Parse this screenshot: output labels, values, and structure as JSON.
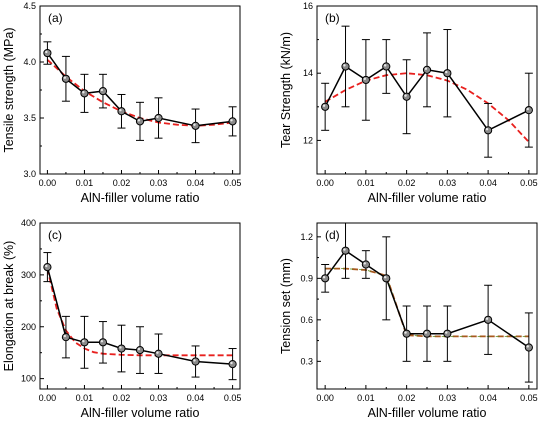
{
  "chart_data": [
    {
      "type": "line",
      "panel_label": "(a)",
      "xlabel": "AlN-filler volume ratio",
      "ylabel": "Tensile strength (MPa)",
      "xlim": [
        -0.002,
        0.052
      ],
      "ylim": [
        3.0,
        4.5
      ],
      "xticks": [
        0.0,
        0.01,
        0.02,
        0.03,
        0.04,
        0.05
      ],
      "xtick_labels": [
        "0.00",
        "0.01",
        "0.02",
        "0.03",
        "0.04",
        "0.05"
      ],
      "yticks": [
        3.0,
        3.5,
        4.0,
        4.5
      ],
      "ytick_labels": [
        "3.0",
        "3.5",
        "4.0",
        "4.5"
      ],
      "x": [
        0.0,
        0.005,
        0.01,
        0.015,
        0.02,
        0.025,
        0.03,
        0.04,
        0.05
      ],
      "y": [
        4.08,
        3.85,
        3.72,
        3.74,
        3.56,
        3.47,
        3.5,
        3.43,
        3.47
      ],
      "err": [
        0.1,
        0.2,
        0.17,
        0.15,
        0.15,
        0.17,
        0.18,
        0.15,
        0.13
      ],
      "fit": {
        "x": [
          0.0,
          0.005,
          0.01,
          0.015,
          0.02,
          0.025,
          0.03,
          0.035,
          0.04,
          0.045,
          0.05
        ],
        "y": [
          4.02,
          3.87,
          3.74,
          3.64,
          3.56,
          3.5,
          3.46,
          3.44,
          3.43,
          3.44,
          3.46
        ]
      }
    },
    {
      "type": "line",
      "panel_label": "(b)",
      "xlabel": "AlN-filler volume ratio",
      "ylabel": "Tear Strength (kN/m)",
      "xlim": [
        -0.002,
        0.052
      ],
      "ylim": [
        11.0,
        16.0
      ],
      "xticks": [
        0.0,
        0.01,
        0.02,
        0.03,
        0.04,
        0.05
      ],
      "xtick_labels": [
        "0.00",
        "0.01",
        "0.02",
        "0.03",
        "0.04",
        "0.05"
      ],
      "yticks": [
        12,
        14,
        16
      ],
      "ytick_labels": [
        "12",
        "14",
        "16"
      ],
      "x": [
        0.0,
        0.005,
        0.01,
        0.015,
        0.02,
        0.025,
        0.03,
        0.04,
        0.05
      ],
      "y": [
        13.0,
        14.2,
        13.8,
        14.2,
        13.3,
        14.1,
        14.0,
        12.3,
        12.9
      ],
      "err": [
        0.7,
        1.2,
        1.2,
        0.8,
        1.1,
        1.1,
        1.3,
        0.8,
        1.1
      ],
      "fit": {
        "x": [
          0.0,
          0.005,
          0.01,
          0.015,
          0.02,
          0.025,
          0.03,
          0.035,
          0.04,
          0.045,
          0.05
        ],
        "y": [
          13.15,
          13.5,
          13.78,
          13.94,
          14.0,
          13.94,
          13.78,
          13.5,
          13.1,
          12.6,
          11.95
        ]
      }
    },
    {
      "type": "line",
      "panel_label": "(c)",
      "xlabel": "AlN-filler volume ratio",
      "ylabel": "Elongation at break (%)",
      "xlim": [
        -0.002,
        0.052
      ],
      "ylim": [
        80,
        400
      ],
      "xticks": [
        0.0,
        0.01,
        0.02,
        0.03,
        0.04,
        0.05
      ],
      "xtick_labels": [
        "0.00",
        "0.01",
        "0.02",
        "0.03",
        "0.04",
        "0.05"
      ],
      "yticks": [
        100,
        200,
        300,
        400
      ],
      "ytick_labels": [
        "100",
        "200",
        "300",
        "400"
      ],
      "x": [
        0.0,
        0.005,
        0.01,
        0.015,
        0.02,
        0.025,
        0.03,
        0.04,
        0.05
      ],
      "y": [
        315,
        180,
        170,
        170,
        158,
        155,
        148,
        133,
        128
      ],
      "err": [
        28,
        40,
        50,
        40,
        45,
        45,
        38,
        30,
        30
      ],
      "fit": {
        "x": [
          0.0,
          0.0025,
          0.005,
          0.0075,
          0.01,
          0.0125,
          0.015,
          0.02,
          0.025,
          0.03,
          0.035,
          0.04,
          0.045,
          0.05
        ],
        "y": [
          312,
          235,
          193,
          170,
          158,
          151,
          148,
          146,
          145,
          145,
          145,
          145,
          145,
          145
        ]
      }
    },
    {
      "type": "line",
      "panel_label": "(d)",
      "xlabel": "AlN-filler volume ratio",
      "ylabel": "Tension set (mm)",
      "xlim": [
        -0.002,
        0.052
      ],
      "ylim": [
        0.1,
        1.3
      ],
      "xticks": [
        0.0,
        0.01,
        0.02,
        0.03,
        0.04,
        0.05
      ],
      "xtick_labels": [
        "0.00",
        "0.01",
        "0.02",
        "0.03",
        "0.04",
        "0.05"
      ],
      "yticks": [
        0.3,
        0.6,
        0.9,
        1.2
      ],
      "ytick_labels": [
        "0.3",
        "0.6",
        "0.9",
        "1.2"
      ],
      "x": [
        0.0,
        0.005,
        0.01,
        0.015,
        0.02,
        0.025,
        0.03,
        0.04,
        0.05
      ],
      "y": [
        0.9,
        1.1,
        1.0,
        0.9,
        0.5,
        0.5,
        0.5,
        0.6,
        0.4
      ],
      "err": [
        0.1,
        0.2,
        0.1,
        0.3,
        0.2,
        0.2,
        0.2,
        0.25,
        0.25
      ],
      "fit": {
        "x": [
          0.0,
          0.005,
          0.01,
          0.015,
          0.02,
          0.025,
          0.03,
          0.04,
          0.05
        ],
        "y": [
          0.97,
          0.97,
          0.96,
          0.92,
          0.49,
          0.48,
          0.48,
          0.48,
          0.48
        ]
      }
    }
  ]
}
